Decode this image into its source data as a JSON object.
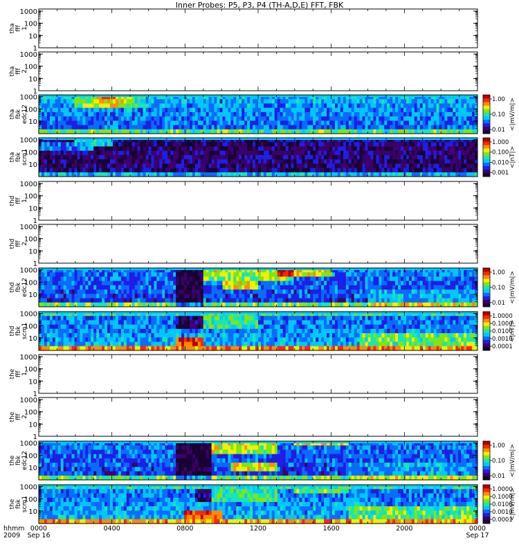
{
  "title": "Inner Probes: P5, P3, P4 (TH-A,D,E) FFT, FBK",
  "colors": {
    "spectrogram_scale": [
      "#1a0033",
      "#3b006b",
      "#1e1ee6",
      "#0a6cff",
      "#00c8ff",
      "#19e6b4",
      "#7de619",
      "#f0f000",
      "#ff8c00",
      "#ff2800",
      "#b40000"
    ]
  },
  "chart_data": [
    {
      "type": "heatmap",
      "id": "tha_fff_1",
      "ylabel": [
        "tha",
        "fff",
        "1"
      ],
      "y_scale": "log",
      "ylim": [
        1,
        1000
      ],
      "y_ticks": [
        "1000",
        "100",
        "10",
        "1"
      ],
      "filled": false,
      "colorbar": null
    },
    {
      "type": "heatmap",
      "id": "tha_fff_2",
      "ylabel": [
        "tha",
        "fff",
        "2"
      ],
      "y_scale": "log",
      "ylim": [
        1,
        1000
      ],
      "y_ticks": [
        "1000",
        "100",
        "10",
        "1"
      ],
      "filled": false,
      "colorbar": null
    },
    {
      "type": "heatmap",
      "id": "tha_fbk_edc12",
      "ylabel": [
        "tha",
        "fbk",
        "edc12"
      ],
      "y_scale": "log",
      "y_ticks": [
        "1000",
        "100",
        "10"
      ],
      "filled": true,
      "profile": "tha_edc",
      "colorbar": {
        "label": "<|mV/m|>",
        "ticks": [
          "1.00",
          "0.10",
          "0.01"
        ]
      }
    },
    {
      "type": "heatmap",
      "id": "tha_fbk_scm1",
      "ylabel": [
        "tha",
        "fbk",
        "scm1"
      ],
      "y_scale": "log",
      "y_ticks": [
        "1000",
        "100",
        "10"
      ],
      "filled": true,
      "profile": "tha_scm",
      "colorbar": {
        "label": "<|nT|>",
        "ticks": [
          "1.000",
          "0.100",
          "0.010",
          "0.001"
        ]
      }
    },
    {
      "type": "heatmap",
      "id": "thd_fff_1",
      "ylabel": [
        "thd",
        "fff",
        "1"
      ],
      "y_scale": "log",
      "ylim": [
        1,
        1000
      ],
      "y_ticks": [
        "1000",
        "100",
        "10",
        "1"
      ],
      "filled": false,
      "colorbar": null
    },
    {
      "type": "heatmap",
      "id": "thd_fff_2",
      "ylabel": [
        "thd",
        "fff",
        "2"
      ],
      "y_scale": "log",
      "ylim": [
        1,
        1000
      ],
      "y_ticks": [
        "1000",
        "100",
        "10",
        "1"
      ],
      "filled": false,
      "colorbar": null
    },
    {
      "type": "heatmap",
      "id": "thd_fbk_edc12",
      "ylabel": [
        "thd",
        "fbk",
        "edc12"
      ],
      "y_scale": "log",
      "y_ticks": [
        "1000",
        "100",
        "10"
      ],
      "filled": true,
      "profile": "thd_edc",
      "colorbar": {
        "label": "<|mV/m|>",
        "ticks": [
          "1.00",
          "0.10",
          "0.01"
        ]
      }
    },
    {
      "type": "heatmap",
      "id": "thd_fbk_scm1",
      "ylabel": [
        "thd",
        "fbk",
        "scm1"
      ],
      "y_scale": "log",
      "y_ticks": [
        "1000",
        "100",
        "10"
      ],
      "filled": true,
      "profile": "thd_scm",
      "colorbar": {
        "label": "<|nT|>",
        "ticks": [
          "1.0000",
          "0.1000",
          "0.0100",
          "0.0010",
          "0.0001"
        ]
      }
    },
    {
      "type": "heatmap",
      "id": "the_fff_1",
      "ylabel": [
        "the",
        "fff",
        "1"
      ],
      "y_scale": "log",
      "ylim": [
        1,
        1000
      ],
      "y_ticks": [
        "1000",
        "100",
        "10",
        "1"
      ],
      "filled": false,
      "colorbar": null
    },
    {
      "type": "heatmap",
      "id": "the_fff_2",
      "ylabel": [
        "the",
        "fff",
        "2"
      ],
      "y_scale": "log",
      "ylim": [
        1,
        1000
      ],
      "y_ticks": [
        "1000",
        "100",
        "10",
        "1"
      ],
      "filled": false,
      "colorbar": null
    },
    {
      "type": "heatmap",
      "id": "the_fbk_edc12",
      "ylabel": [
        "the",
        "fbk",
        "edc12"
      ],
      "y_scale": "log",
      "y_ticks": [
        "1000",
        "100",
        "10"
      ],
      "filled": true,
      "profile": "the_edc",
      "colorbar": {
        "label": "<|mV/m|>",
        "ticks": [
          "1.00",
          "0.10",
          "0.01"
        ]
      }
    },
    {
      "type": "heatmap",
      "id": "the_fbk_scm1",
      "ylabel": [
        "the",
        "fbk",
        "scm1"
      ],
      "y_scale": "log",
      "y_ticks": [
        "1000",
        "100",
        "10"
      ],
      "filled": true,
      "profile": "the_scm",
      "colorbar": {
        "label": "<|mV/m|>",
        "ticks": [
          "1.0000",
          "0.1000",
          "0.0100",
          "0.0010",
          "0.0001"
        ]
      }
    }
  ],
  "x_axis": {
    "label_lines": [
      "hhmm",
      "2009"
    ],
    "ticks": [
      {
        "hour": 0,
        "label": "0000",
        "sublabel": "Sep 16"
      },
      {
        "hour": 4,
        "label": "0400",
        "sublabel": ""
      },
      {
        "hour": 8,
        "label": "0800",
        "sublabel": ""
      },
      {
        "hour": 12,
        "label": "1200",
        "sublabel": ""
      },
      {
        "hour": 16,
        "label": "1600",
        "sublabel": ""
      },
      {
        "hour": 20,
        "label": "2000",
        "sublabel": ""
      },
      {
        "hour": 24,
        "label": "0000",
        "sublabel": "Sep 17"
      }
    ],
    "range_hours": [
      0,
      24
    ]
  }
}
